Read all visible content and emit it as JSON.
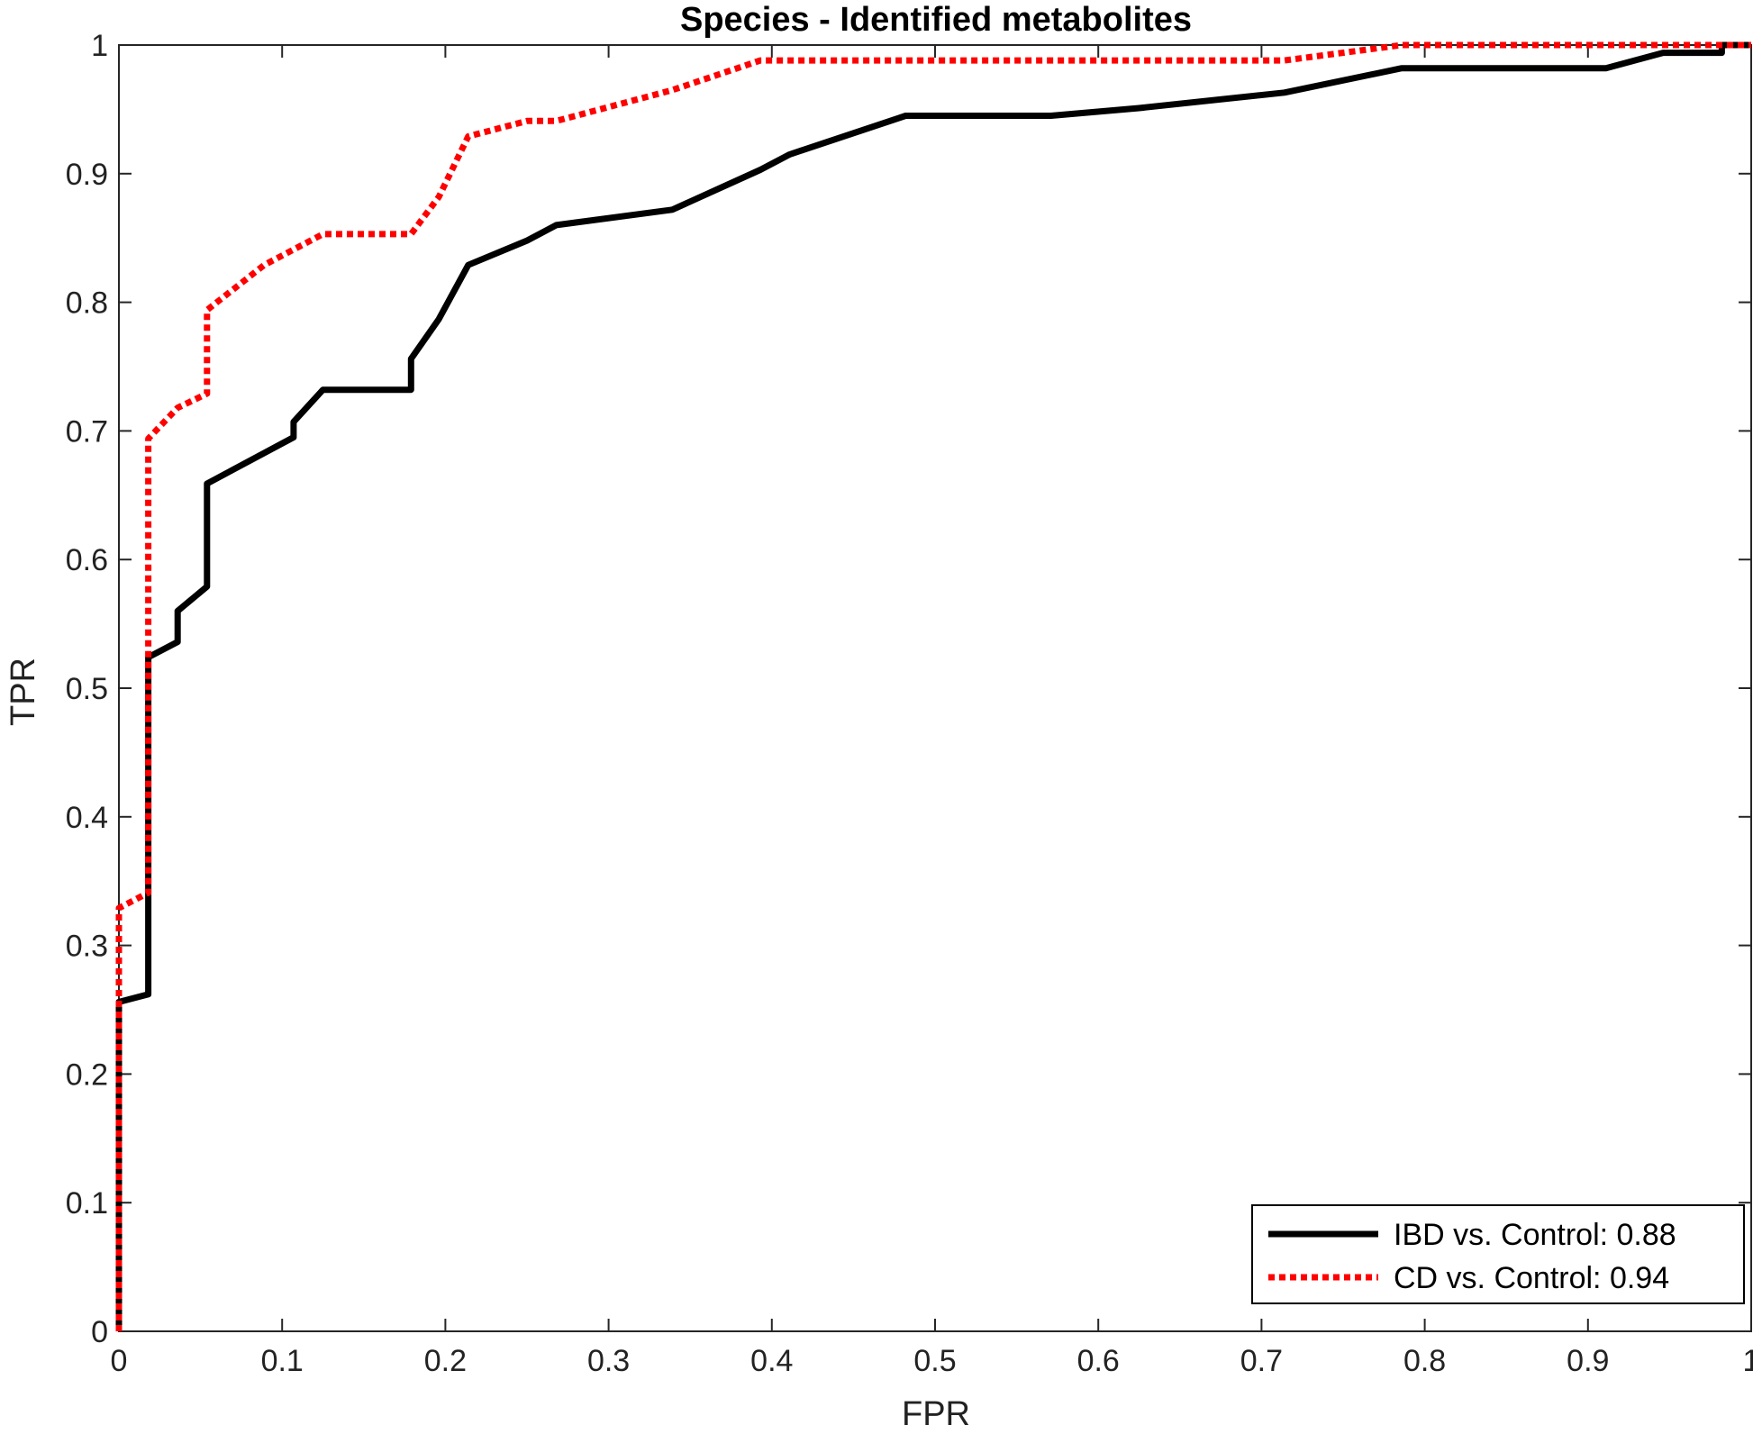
{
  "chart_data": {
    "type": "line",
    "title": "Species - Identified metabolites",
    "xlabel": "FPR",
    "ylabel": "TPR",
    "xlim": [
      0,
      1
    ],
    "ylim": [
      0,
      1
    ],
    "xticks": [
      0,
      0.1,
      0.2,
      0.3,
      0.4,
      0.5,
      0.6,
      0.7,
      0.8,
      0.9,
      1
    ],
    "yticks": [
      0,
      0.1,
      0.2,
      0.3,
      0.4,
      0.5,
      0.6,
      0.7,
      0.8,
      0.9,
      1
    ],
    "xtick_labels": [
      "0",
      "0.1",
      "0.2",
      "0.3",
      "0.4",
      "0.5",
      "0.6",
      "0.7",
      "0.8",
      "0.9",
      "1"
    ],
    "ytick_labels": [
      "0",
      "0.1",
      "0.2",
      "0.3",
      "0.4",
      "0.5",
      "0.6",
      "0.7",
      "0.8",
      "0.9",
      "1"
    ],
    "grid": false,
    "legend_position": "bottom-right",
    "series": [
      {
        "name": "IBD vs. Control: 0.88",
        "color": "#000000",
        "style": "solid",
        "x": [
          0,
          0,
          0.018,
          0.018,
          0.018,
          0.036,
          0.036,
          0.054,
          0.054,
          0.107,
          0.107,
          0.125,
          0.179,
          0.179,
          0.196,
          0.214,
          0.25,
          0.268,
          0.339,
          0.393,
          0.411,
          0.482,
          0.571,
          0.625,
          0.714,
          0.786,
          0.911,
          0.946,
          0.982,
          0.982,
          1
        ],
        "y": [
          0,
          0.256,
          0.262,
          0.339,
          0.524,
          0.536,
          0.56,
          0.579,
          0.659,
          0.695,
          0.707,
          0.732,
          0.732,
          0.756,
          0.787,
          0.829,
          0.848,
          0.86,
          0.872,
          0.903,
          0.915,
          0.945,
          0.945,
          0.951,
          0.963,
          0.982,
          0.982,
          0.994,
          0.994,
          1,
          1
        ]
      },
      {
        "name": "CD vs. Control: 0.94",
        "color": "#ff0000",
        "style": "dotted",
        "x": [
          0,
          0,
          0.018,
          0.018,
          0.036,
          0.054,
          0.054,
          0.089,
          0.125,
          0.179,
          0.196,
          0.214,
          0.25,
          0.268,
          0.339,
          0.393,
          0.411,
          0.714,
          0.786,
          1
        ],
        "y": [
          0,
          0.329,
          0.341,
          0.694,
          0.718,
          0.729,
          0.794,
          0.829,
          0.853,
          0.853,
          0.882,
          0.929,
          0.941,
          0.941,
          0.965,
          0.988,
          0.988,
          0.988,
          1,
          1
        ]
      }
    ]
  }
}
